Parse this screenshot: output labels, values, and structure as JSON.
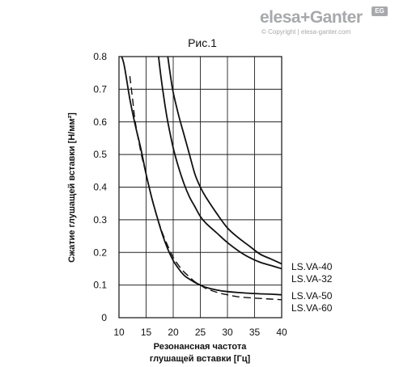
{
  "logo": {
    "main": "elesa+Ganter",
    "badge": "EG",
    "copyright": "© Copyright | elesa-ganter.com"
  },
  "chart_data": {
    "type": "line",
    "title": "Рис.1",
    "xlabel_line1": "Резонансная частота",
    "xlabel_line2": "глушащей вставки [Гц]",
    "ylabel": "Сжатие глушащей вставки  [Н/мм²]",
    "xlim": [
      10,
      40
    ],
    "ylim": [
      0,
      0.8
    ],
    "xticks": [
      10,
      15,
      20,
      25,
      30,
      35,
      40
    ],
    "yticks": [
      "0",
      "0.1",
      "0.2",
      "0.3",
      "0.4",
      "0.5",
      "0.6",
      "0.7",
      "0.8"
    ],
    "grid": true,
    "series": [
      {
        "name": "LS.VA-40",
        "style": "solid",
        "x": [
          19.0,
          19.5,
          20,
          21,
          22,
          23,
          24,
          25,
          26,
          28,
          30,
          32,
          34,
          36,
          38,
          40
        ],
        "y": [
          0.8,
          0.74,
          0.69,
          0.62,
          0.56,
          0.5,
          0.44,
          0.4,
          0.37,
          0.32,
          0.275,
          0.245,
          0.22,
          0.195,
          0.18,
          0.165
        ]
      },
      {
        "name": "LS.VA-32",
        "style": "solid",
        "x": [
          17.3,
          17.8,
          18.5,
          19,
          20,
          21,
          22,
          23,
          24,
          25,
          26,
          28,
          30,
          32,
          34,
          36,
          38,
          40
        ],
        "y": [
          0.8,
          0.73,
          0.65,
          0.6,
          0.52,
          0.46,
          0.41,
          0.37,
          0.34,
          0.31,
          0.29,
          0.26,
          0.23,
          0.205,
          0.185,
          0.17,
          0.16,
          0.15
        ]
      },
      {
        "name": "LS.VA-50",
        "style": "solid",
        "x": [
          10.5,
          11,
          12,
          13,
          14,
          15,
          16,
          17,
          18,
          19,
          20,
          21,
          22,
          23,
          24,
          25,
          26,
          28,
          30,
          32,
          35,
          38,
          40
        ],
        "y": [
          0.8,
          0.77,
          0.67,
          0.59,
          0.52,
          0.44,
          0.37,
          0.31,
          0.255,
          0.21,
          0.175,
          0.15,
          0.13,
          0.118,
          0.108,
          0.1,
          0.093,
          0.085,
          0.08,
          0.077,
          0.074,
          0.072,
          0.07
        ]
      },
      {
        "name": "LS.VA-60",
        "style": "dashed",
        "x": [
          12,
          12.5,
          13,
          14,
          15,
          16,
          17,
          18,
          19,
          20,
          21,
          22,
          23,
          24,
          25,
          26,
          28,
          30,
          32,
          35,
          38,
          40
        ],
        "y": [
          0.74,
          0.67,
          0.6,
          0.51,
          0.44,
          0.37,
          0.31,
          0.26,
          0.22,
          0.185,
          0.16,
          0.14,
          0.125,
          0.11,
          0.1,
          0.09,
          0.078,
          0.07,
          0.064,
          0.06,
          0.057,
          0.055
        ]
      }
    ]
  }
}
